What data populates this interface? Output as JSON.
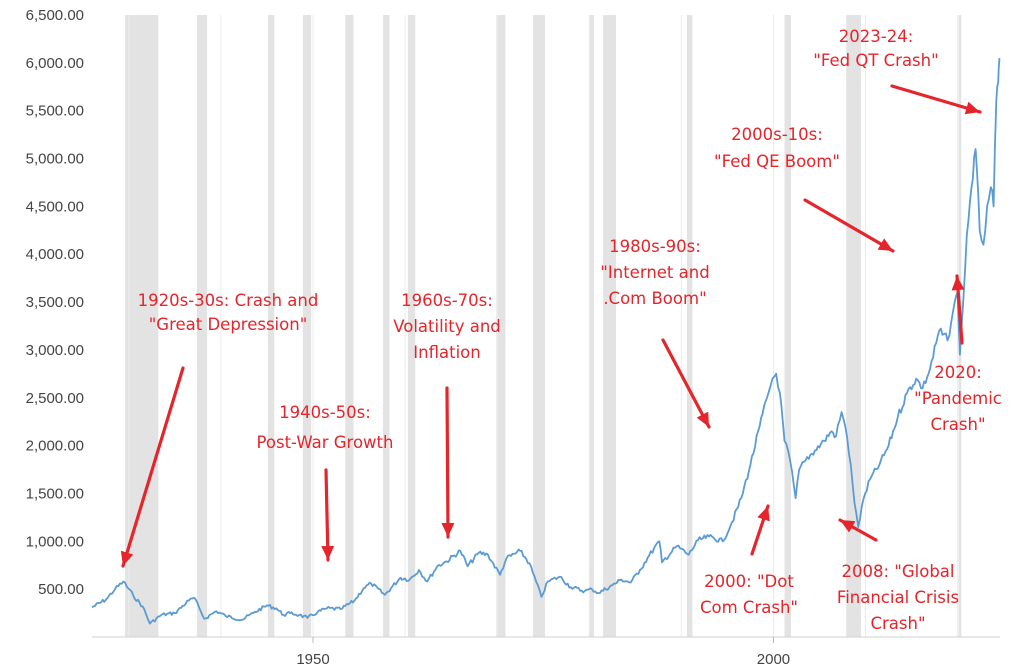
{
  "chart_data": {
    "type": "line",
    "title": "",
    "xlabel": "",
    "ylabel": "",
    "xlim": [
      1926,
      2024.6
    ],
    "ylim": [
      0,
      6500
    ],
    "y_ticks": [
      500,
      1000,
      1500,
      2000,
      2500,
      3000,
      3500,
      4000,
      4500,
      5000,
      5500,
      6000,
      6500
    ],
    "y_tick_labels": [
      "500.00",
      "1,000.00",
      "1,500.00",
      "2,000.00",
      "2,500.00",
      "3,000.00",
      "3,500.00",
      "4,000.00",
      "4,500.00",
      "5,000.00",
      "5,500.00",
      "6,000.00",
      "6,500.00"
    ],
    "x_ticks": [
      1950,
      2000
    ],
    "x_tick_labels": [
      "1950",
      "2000"
    ],
    "grid": "vertical lines, light gray",
    "line_color": "#5b9bd5",
    "recession_color": "#e3e3e3",
    "recessions": [
      [
        1929.6,
        1933.2
      ],
      [
        1937.4,
        1938.5
      ],
      [
        1945.1,
        1945.8
      ],
      [
        1948.9,
        1949.8
      ],
      [
        1953.5,
        1954.4
      ],
      [
        1957.6,
        1958.3
      ],
      [
        1960.3,
        1961.1
      ],
      [
        1969.9,
        1970.9
      ],
      [
        1973.9,
        1975.2
      ],
      [
        1980.0,
        1980.5
      ],
      [
        1981.5,
        1982.9
      ],
      [
        1990.6,
        1991.2
      ],
      [
        2001.2,
        2001.9
      ],
      [
        2007.9,
        2009.5
      ],
      [
        2020.1,
        2020.4
      ]
    ],
    "series": [
      {
        "name": "",
        "x": [
          1926.0,
          1927.5,
          1928.5,
          1929.4,
          1930.5,
          1931.5,
          1932.3,
          1933.5,
          1935.0,
          1936.5,
          1937.1,
          1937.8,
          1938.2,
          1939.5,
          1940.5,
          1942.3,
          1943.5,
          1945.0,
          1946.0,
          1946.8,
          1947.5,
          1948.5,
          1949.4,
          1950.5,
          1951.5,
          1953.0,
          1954.5,
          1955.5,
          1956.3,
          1957.8,
          1959.5,
          1960.5,
          1961.5,
          1962.4,
          1963.5,
          1964.5,
          1966.0,
          1966.8,
          1968.0,
          1969.0,
          1970.3,
          1971.0,
          1972.5,
          1973.5,
          1974.8,
          1975.5,
          1976.8,
          1978.0,
          1979.5,
          1980.3,
          1981.0,
          1982.5,
          1983.5,
          1984.5,
          1985.5,
          1986.5,
          1987.6,
          1987.9,
          1989.5,
          1990.8,
          1991.8,
          1993.0,
          1994.5,
          1995.5,
          1996.5,
          1997.5,
          1998.5,
          1999.3,
          1999.9,
          2000.3,
          2000.7,
          2001.2,
          2001.8,
          2002.4,
          2002.8,
          2003.5,
          2004.5,
          2005.5,
          2006.3,
          2006.8,
          2007.4,
          2007.8,
          2008.4,
          2008.8,
          2009.2,
          2009.8,
          2010.5,
          2011.5,
          2012.5,
          2013.5,
          2014.5,
          2015.5,
          2016.2,
          2017.0,
          2018.0,
          2018.9,
          2019.5,
          2020.0,
          2020.25,
          2020.6,
          2021.0,
          2021.5,
          2021.95,
          2022.4,
          2022.8,
          2023.2,
          2023.6,
          2023.9,
          2024.2,
          2024.4,
          2024.55
        ],
        "y": [
          310,
          390,
          500,
          580,
          430,
          320,
          140,
          230,
          250,
          380,
          410,
          270,
          190,
          270,
          220,
          180,
          250,
          330,
          300,
          230,
          250,
          230,
          200,
          260,
          300,
          290,
          380,
          510,
          560,
          440,
          620,
          600,
          700,
          580,
          740,
          790,
          900,
          740,
          880,
          860,
          650,
          820,
          900,
          770,
          420,
          580,
          630,
          520,
          480,
          500,
          460,
          540,
          600,
          570,
          700,
          850,
          1000,
          780,
          950,
          860,
          1010,
          1050,
          1000,
          1200,
          1450,
          1800,
          2200,
          2500,
          2700,
          2750,
          2550,
          2050,
          1850,
          1450,
          1750,
          1850,
          1950,
          2050,
          2150,
          2100,
          2350,
          2200,
          1800,
          1400,
          1150,
          1450,
          1650,
          1800,
          2000,
          2300,
          2550,
          2700,
          2600,
          2800,
          3200,
          3100,
          3400,
          3600,
          2950,
          3500,
          4200,
          4700,
          5100,
          4250,
          4100,
          4500,
          4700,
          4500,
          5600,
          5800,
          6050
        ]
      }
    ],
    "annotations": [
      {
        "label": "1920s-30s: Crash and \"Great Depression\"",
        "lines": [
          "1920s-30s: Crash and",
          "\"Great Depression\""
        ]
      },
      {
        "label": "1940s-50s: Post-War Growth",
        "lines": [
          "1940s-50s:",
          "Post-War Growth"
        ]
      },
      {
        "label": "1960s-70s: Volatility and Inflation",
        "lines": [
          "1960s-70s:",
          "Volatility and",
          "Inflation"
        ]
      },
      {
        "label": "1980s-90s: \"Internet and .Com Boom\"",
        "lines": [
          "1980s-90s:",
          "\"Internet and",
          ".Com Boom\""
        ]
      },
      {
        "label": "2000: \"Dot Com Crash\"",
        "lines": [
          "2000: \"Dot",
          "Com Crash\""
        ]
      },
      {
        "label": "2000s-10s: \"Fed QE Boom\"",
        "lines": [
          "2000s-10s:",
          "\"Fed QE Boom\""
        ]
      },
      {
        "label": "2008: \"Global Financial Crisis Crash\"",
        "lines": [
          "2008: \"Global",
          "Financial Crisis",
          "Crash\""
        ]
      },
      {
        "label": "2020: \"Pandemic Crash\"",
        "lines": [
          "2020:",
          "\"Pandemic",
          "Crash\""
        ]
      },
      {
        "label": "2023-24: \"Fed QT Crash\"",
        "lines": [
          "2023-24:",
          "\"Fed QT Crash\""
        ]
      }
    ],
    "annotation_color": "#e4252b"
  }
}
